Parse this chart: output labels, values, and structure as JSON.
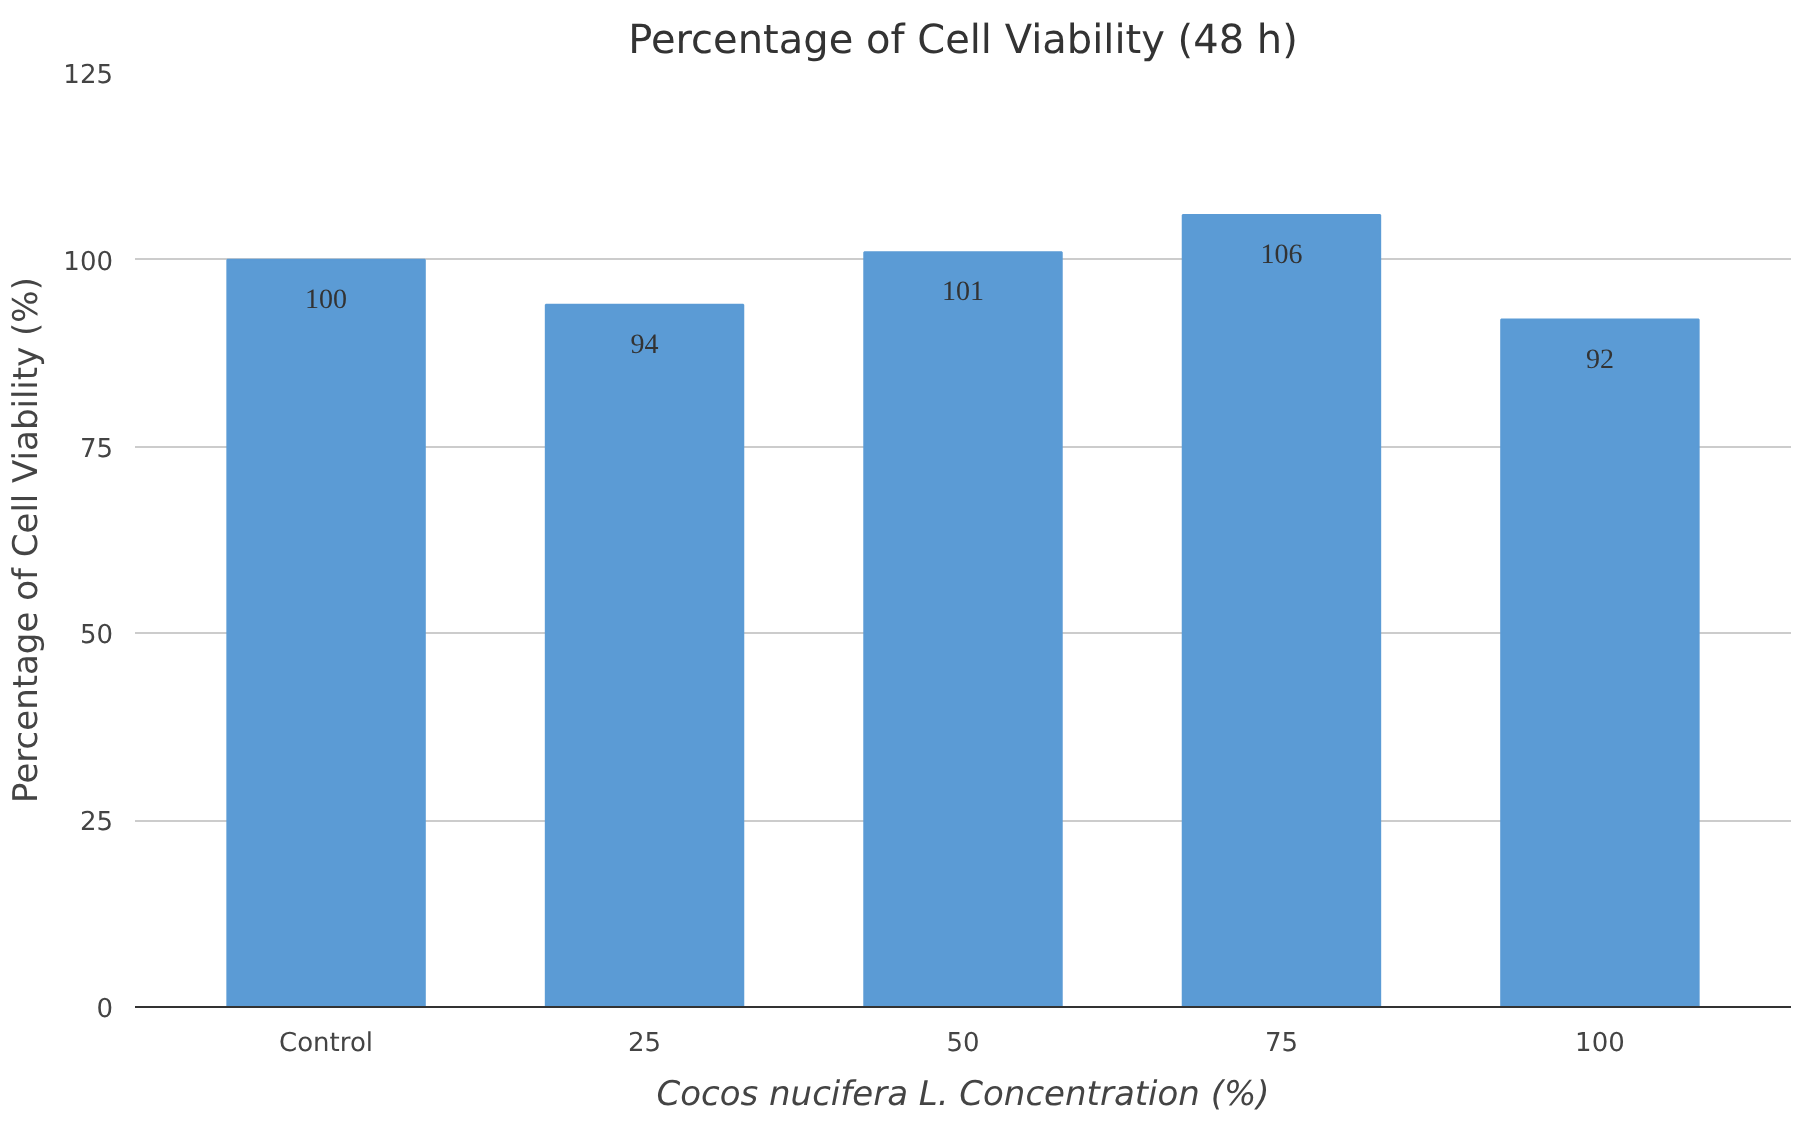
{
  "chart_data": {
    "type": "bar",
    "title": "Percentage of Cell Viability (48 h)",
    "xlabel": "Cocos nucifera L. Concentration (%)",
    "ylabel": "Percentage of Cell Viability (%)",
    "categories": [
      "Control",
      "25",
      "50",
      "75",
      "100"
    ],
    "values": [
      100,
      94,
      101,
      106,
      92
    ],
    "color": "#5b9bd5",
    "ylim": [
      0,
      125
    ],
    "yticks": [
      0,
      25,
      50,
      75,
      100,
      125
    ],
    "grid": "y",
    "data_labels": true
  }
}
